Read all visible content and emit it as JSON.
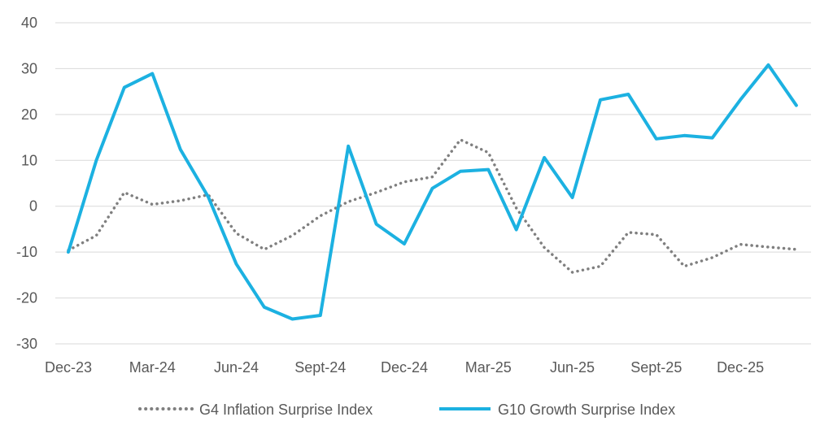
{
  "chart_data": {
    "type": "line",
    "x": [
      "Dec-23",
      "Jan-24",
      "Feb-24",
      "Mar-24",
      "Apr-24",
      "May-24",
      "Jun-24",
      "Jul-24",
      "Aug-24",
      "Sept-24",
      "Oct-24",
      "Nov-24",
      "Dec-24",
      "Jan-25",
      "Feb-25",
      "Mar-25",
      "Apr-25",
      "May-25",
      "Jun-25",
      "Jul-25",
      "Aug-25",
      "Sept-25",
      "Oct-25",
      "Nov-25",
      "Dec-25",
      "Jan-26",
      "Feb-26"
    ],
    "x_tick_labels": [
      "Dec-23",
      "Mar-24",
      "Jun-24",
      "Sept-24",
      "Dec-24",
      "Mar-25",
      "Jun-25",
      "Sept-25",
      "Dec-25"
    ],
    "ylim": [
      -30,
      40
    ],
    "y_ticks": [
      -30,
      -20,
      -10,
      0,
      10,
      20,
      30,
      40
    ],
    "grid": "horizontal",
    "legend_position": "bottom",
    "series": [
      {
        "name": "G4 Inflation Surprise Index",
        "color": "#7f7f7f",
        "style": "dotted",
        "values": [
          -9.6,
          -6.4,
          3.0,
          0.4,
          1.2,
          2.5,
          -5.9,
          -9.4,
          -6.4,
          -2.1,
          1.0,
          3.0,
          5.3,
          6.4,
          14.5,
          11.7,
          -0.4,
          -9.0,
          -14.4,
          -13.1,
          -5.7,
          -6.2,
          -13.1,
          -11.2,
          -8.3,
          -8.9,
          -9.4
        ]
      },
      {
        "name": "G10 Growth Surprise Index",
        "color": "#1cb1e1",
        "style": "solid",
        "values": [
          -10.0,
          10.0,
          25.9,
          28.9,
          12.4,
          2.0,
          -12.6,
          -22.0,
          -24.6,
          -23.8,
          13.1,
          -3.9,
          -8.2,
          3.9,
          7.6,
          8.0,
          -5.1,
          10.6,
          1.9,
          23.2,
          24.4,
          14.7,
          15.4,
          14.9,
          23.2,
          30.8,
          22.0
        ]
      }
    ]
  }
}
